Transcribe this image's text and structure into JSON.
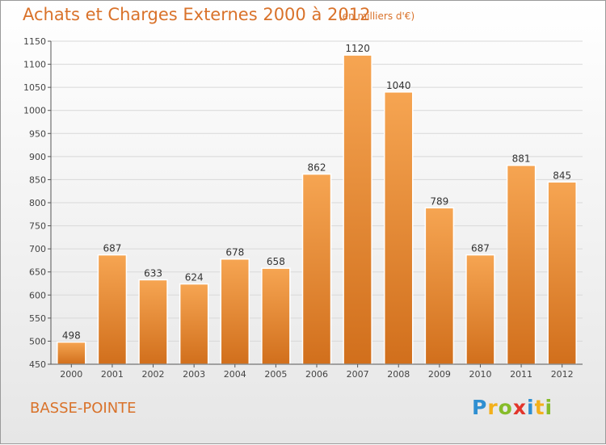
{
  "header": {
    "title": "Achats et Charges Externes 2000 à 2012",
    "subtitle": "(en milliers d'€)"
  },
  "footer": {
    "place": "BASSE-POINTE",
    "logo_letters": [
      "P",
      "r",
      "o",
      "x",
      "i",
      "t",
      "i"
    ],
    "logo_colors": [
      "#2f8fd1",
      "#f3b01b",
      "#86bc2a",
      "#e2352b",
      "#2f8fd1",
      "#f3b01b",
      "#86bc2a"
    ]
  },
  "colors": {
    "bar_light": "#f6a552",
    "bar_dark": "#d16f1c",
    "grid": "#d8d8d8",
    "axis": "#555555",
    "accent": "#d9722a"
  },
  "chart_data": {
    "type": "bar",
    "title": "Achats et Charges Externes 2000 à 2012",
    "subtitle": "(en milliers d'€)",
    "xlabel": "",
    "ylabel": "",
    "categories": [
      "2000",
      "2001",
      "2002",
      "2003",
      "2004",
      "2005",
      "2006",
      "2007",
      "2008",
      "2009",
      "2010",
      "2011",
      "2012"
    ],
    "values": [
      498,
      687,
      633,
      624,
      678,
      658,
      862,
      1120,
      1040,
      789,
      687,
      881,
      845
    ],
    "ylim": [
      450,
      1150
    ],
    "yticks": [
      450,
      500,
      550,
      600,
      650,
      700,
      750,
      800,
      850,
      900,
      950,
      1000,
      1050,
      1100,
      1150
    ],
    "grid": true,
    "legend": "none"
  }
}
